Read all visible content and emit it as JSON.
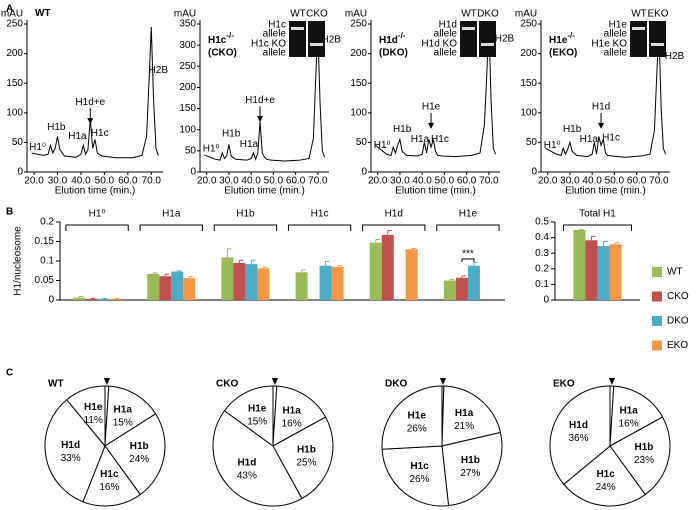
{
  "panel_labels": [
    "A",
    "B",
    "C"
  ],
  "chart_data": [
    {
      "type": "line",
      "title": "WT",
      "ylabel": "mAU",
      "xlabel": "Elution time (min.)",
      "color": "#000000",
      "x": [
        19,
        24,
        26,
        27,
        28,
        29,
        30,
        31,
        33,
        38,
        40,
        41,
        42,
        43,
        44,
        45,
        46,
        47,
        49,
        55,
        62,
        66,
        68,
        69,
        70,
        71,
        72,
        73
      ],
      "values": [
        32,
        28,
        30,
        45,
        32,
        40,
        60,
        38,
        27,
        25,
        30,
        45,
        30,
        38,
        90,
        40,
        55,
        32,
        27,
        24,
        24,
        28,
        60,
        150,
        245,
        120,
        40,
        28
      ],
      "xlim": [
        17,
        75
      ],
      "xticks": [
        {
          "value": 20,
          "label": "20.0"
        },
        {
          "value": 30,
          "label": "30.0"
        },
        {
          "value": 40,
          "label": "40.0"
        },
        {
          "value": 50,
          "label": "50.0"
        },
        {
          "value": 60,
          "label": "60.0"
        },
        {
          "value": 70,
          "label": "70.0"
        }
      ],
      "ylim": [
        0,
        250
      ],
      "yticks": [
        0,
        50,
        100,
        150,
        200,
        250
      ],
      "annotations": [
        "H1⁰",
        "H1b",
        "H1a",
        "H1d+e",
        "H1c",
        "H2B"
      ]
    },
    {
      "type": "line",
      "title": "H1c",
      "title_sup": "-/-",
      "title_line2": "(CKO)",
      "ylabel": "mAU",
      "xlabel": "Elution time (min.)",
      "color": "#000000",
      "x": [
        19,
        24,
        26,
        27,
        28,
        29,
        30,
        31,
        33,
        38,
        40,
        41,
        42,
        43,
        44,
        45,
        46,
        47,
        49,
        55,
        62,
        66,
        68,
        69,
        70,
        71,
        72,
        73
      ],
      "values": [
        40,
        30,
        28,
        45,
        32,
        38,
        65,
        38,
        30,
        28,
        32,
        45,
        30,
        45,
        120,
        45,
        35,
        30,
        28,
        26,
        28,
        32,
        80,
        220,
        335,
        160,
        50,
        35
      ],
      "xlim": [
        17,
        75
      ],
      "xticks": [
        {
          "value": 20,
          "label": "20.0"
        },
        {
          "value": 30,
          "label": "30.0"
        },
        {
          "value": 40,
          "label": "40.0"
        },
        {
          "value": 50,
          "label": "50.0"
        },
        {
          "value": 60,
          "label": "60.0"
        },
        {
          "value": 70,
          "label": "70.0"
        }
      ],
      "ylim": [
        0,
        350
      ],
      "yticks": [
        0,
        50,
        100,
        150,
        200,
        250,
        300,
        350
      ],
      "annotations": [
        "H1⁰",
        "H1b",
        "H1a",
        "H1d+e",
        "H2B"
      ],
      "gel": {
        "lanes": [
          "WT",
          "CKO"
        ],
        "rows": [
          [
            "H1c",
            "allele"
          ],
          [
            "H1c KO",
            "allele"
          ]
        ]
      }
    },
    {
      "type": "line",
      "title": "H1d",
      "title_sup": "-/-",
      "title_line2": "(DKO)",
      "ylabel": "mAU",
      "xlabel": "Elution time (min.)",
      "color": "#000000",
      "x": [
        19,
        24,
        26,
        27,
        28,
        29,
        30,
        31,
        33,
        38,
        40,
        41,
        42,
        43,
        44,
        45,
        46,
        47,
        49,
        55,
        62,
        66,
        68,
        69,
        70,
        71,
        72,
        73
      ],
      "values": [
        45,
        30,
        28,
        42,
        32,
        45,
        55,
        35,
        28,
        27,
        30,
        50,
        32,
        55,
        42,
        55,
        35,
        28,
        27,
        26,
        28,
        32,
        80,
        160,
        250,
        120,
        40,
        30
      ],
      "xlim": [
        17,
        75
      ],
      "xticks": [
        {
          "value": 20,
          "label": "20.0"
        },
        {
          "value": 30,
          "label": "30.0"
        },
        {
          "value": 40,
          "label": "40.0"
        },
        {
          "value": 50,
          "label": "50.0"
        },
        {
          "value": 60,
          "label": "60.0"
        },
        {
          "value": 70,
          "label": "70.0"
        }
      ],
      "ylim": [
        0,
        250
      ],
      "yticks": [
        0,
        50,
        100,
        150,
        200,
        250
      ],
      "annotations": [
        "H1⁰",
        "H1b",
        "H1a",
        "H1e",
        "H1c",
        "H2B"
      ],
      "gel": {
        "lanes": [
          "WT",
          "DKO"
        ],
        "rows": [
          [
            "H1d",
            "allele"
          ],
          [
            "H1d KO",
            "allele"
          ]
        ]
      }
    },
    {
      "type": "line",
      "title": "H1e",
      "title_sup": "-/-",
      "title_line2": "(EKO)",
      "ylabel": "mAU",
      "xlabel": "Elution time (min.)",
      "color": "#000000",
      "x": [
        19,
        24,
        26,
        27,
        28,
        29,
        30,
        31,
        33,
        38,
        40,
        41,
        42,
        43,
        44,
        45,
        46,
        47,
        49,
        55,
        62,
        66,
        68,
        69,
        70,
        71,
        72,
        73
      ],
      "values": [
        40,
        30,
        28,
        40,
        30,
        38,
        50,
        35,
        28,
        26,
        30,
        50,
        30,
        60,
        45,
        55,
        32,
        28,
        27,
        25,
        27,
        30,
        70,
        160,
        245,
        110,
        40,
        30
      ],
      "xlim": [
        17,
        75
      ],
      "xticks": [
        {
          "value": 20,
          "label": "20.0"
        },
        {
          "value": 30,
          "label": "30.0"
        },
        {
          "value": 40,
          "label": "40.0"
        },
        {
          "value": 50,
          "label": "50.0"
        },
        {
          "value": 60,
          "label": "60.0"
        },
        {
          "value": 70,
          "label": "70.0"
        }
      ],
      "ylim": [
        0,
        250
      ],
      "yticks": [
        0,
        50,
        100,
        150,
        200,
        250
      ],
      "annotations": [
        "H1⁰",
        "H1b",
        "H1a",
        "H1d",
        "H1c",
        "H2B"
      ],
      "gel": {
        "lanes": [
          "WT",
          "EKO"
        ],
        "rows": [
          [
            "H1e",
            "allele"
          ],
          [
            "H1e KO",
            "allele"
          ]
        ]
      }
    },
    {
      "type": "bar",
      "ylabel": "H1/nucleosome",
      "categories": [
        "H1⁰",
        "H1a",
        "H1b",
        "H1c",
        "H1d",
        "H1e"
      ],
      "series": [
        {
          "name": "WT",
          "color": "#9bbb59",
          "values": [
            0.006,
            0.067,
            0.109,
            0.071,
            0.147,
            0.05
          ],
          "errors": [
            0.003,
            0.003,
            0.022,
            0.006,
            0.008,
            0.003
          ]
        },
        {
          "name": "CKO",
          "color": "#c0504d",
          "values": [
            0.003,
            0.061,
            0.095,
            null,
            0.167,
            0.057
          ],
          "errors": [
            0.001,
            0.005,
            0.007,
            null,
            0.011,
            0.005
          ]
        },
        {
          "name": "DKO",
          "color": "#4bacc6",
          "values": [
            0.003,
            0.073,
            0.092,
            0.088,
            null,
            0.088
          ],
          "errors": [
            0.001,
            0.002,
            0.01,
            0.011,
            null,
            0.008
          ]
        },
        {
          "name": "EKO",
          "color": "#f79646",
          "values": [
            0.003,
            0.056,
            0.081,
            0.085,
            0.13,
            null
          ],
          "errors": [
            0.001,
            0.004,
            0.003,
            0.003,
            0.002,
            null
          ]
        }
      ],
      "ylim": [
        0,
        0.2
      ],
      "yticks": [
        0,
        0.05,
        0.1,
        0.15,
        0.2
      ],
      "annotation": "***",
      "legend": "right"
    },
    {
      "type": "bar",
      "categories": [
        "Total H1"
      ],
      "series": [
        {
          "color": "#9bbb59",
          "values": [
            0.449
          ],
          "errors": [
            0.004
          ]
        },
        {
          "color": "#c0504d",
          "values": [
            0.383
          ],
          "errors": [
            0.025
          ]
        },
        {
          "color": "#4bacc6",
          "values": [
            0.345
          ],
          "errors": [
            0.03
          ]
        },
        {
          "color": "#f79646",
          "values": [
            0.357
          ],
          "errors": [
            0.01
          ]
        }
      ],
      "ylim": [
        0,
        0.5
      ],
      "yticks": [
        0,
        0.1,
        0.2,
        0.3,
        0.4,
        0.5
      ]
    },
    {
      "type": "pie",
      "title": "WT",
      "color": "#ffffff",
      "categories": [
        null,
        "H1a",
        "H1b",
        "H1c",
        "H1d",
        "H1e"
      ],
      "values": [
        1,
        15,
        24,
        16,
        33,
        11
      ],
      "value_labels": [
        null,
        "15%",
        "24%",
        "16%",
        "33%",
        "11%"
      ]
    },
    {
      "type": "pie",
      "title": "CKO",
      "color": "#ffffff",
      "categories": [
        null,
        "H1a",
        "H1b",
        "H1d",
        "H1e"
      ],
      "values": [
        1,
        16,
        25,
        43,
        15
      ],
      "value_labels": [
        null,
        "16%",
        "25%",
        "43%",
        "15%"
      ]
    },
    {
      "type": "pie",
      "title": "DKO",
      "color": "#ffffff",
      "categories": [
        null,
        "H1a",
        "H1b",
        "H1c",
        "H1e"
      ],
      "values": [
        0.5,
        21,
        27,
        26,
        26
      ],
      "value_labels": [
        null,
        "21%",
        "27%",
        "26%",
        "26%"
      ]
    },
    {
      "type": "pie",
      "title": "EKO",
      "color": "#ffffff",
      "categories": [
        null,
        "H1a",
        "H1b",
        "H1c",
        "H1d"
      ],
      "values": [
        1,
        16,
        23,
        24,
        36
      ],
      "value_labels": [
        null,
        "16%",
        "23%",
        "24%",
        "36%"
      ]
    }
  ]
}
